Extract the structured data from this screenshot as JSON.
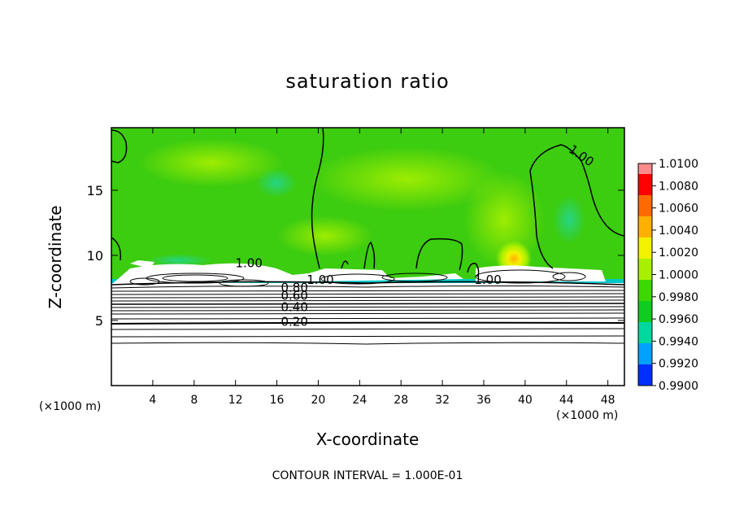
{
  "chart_data": {
    "type": "heatmap",
    "title": "saturation ratio",
    "xlabel": "X-coordinate",
    "ylabel": "Z-coordinate",
    "x_unit_left": "(×1000 m)",
    "x_unit_right": "(×1000 m)",
    "xlim": [
      0,
      49.6
    ],
    "ylim": [
      0,
      19.8
    ],
    "x_ticks": [
      4,
      8,
      12,
      16,
      20,
      24,
      28,
      32,
      36,
      40,
      44,
      48
    ],
    "y_ticks": [
      5,
      10,
      15
    ],
    "footer": "CONTOUR INTERVAL = 1.000E-01",
    "colorbar": {
      "labels": [
        "1.0100",
        "1.0080",
        "1.0060",
        "1.0040",
        "1.0020",
        "1.0000",
        "0.9980",
        "0.9960",
        "0.9940",
        "0.9920",
        "0.9900"
      ],
      "colors": [
        "#ff0000",
        "#ff6a00",
        "#ffb000",
        "#f2f200",
        "#a8f000",
        "#3cd800",
        "#10cc20",
        "#00d8a0",
        "#00a0ff",
        "#0030ff",
        "#8000c0"
      ],
      "top_color": "#ff8c8c"
    },
    "contour_labels": [
      {
        "text": "1.00",
        "x": 45.2,
        "y": 17.4
      },
      {
        "text": "1.00",
        "x": 13.3,
        "y": 9.1
      },
      {
        "text": "1.00",
        "x": 20.2,
        "y": 7.8
      },
      {
        "text": "1.00",
        "x": 36.4,
        "y": 7.8
      },
      {
        "text": "0.80",
        "x": 17.7,
        "y": 7.2
      },
      {
        "text": "0.60",
        "x": 17.7,
        "y": 6.6
      },
      {
        "text": "0.40",
        "x": 17.7,
        "y": 5.7
      },
      {
        "text": "0.20",
        "x": 17.7,
        "y": 4.6
      }
    ]
  }
}
